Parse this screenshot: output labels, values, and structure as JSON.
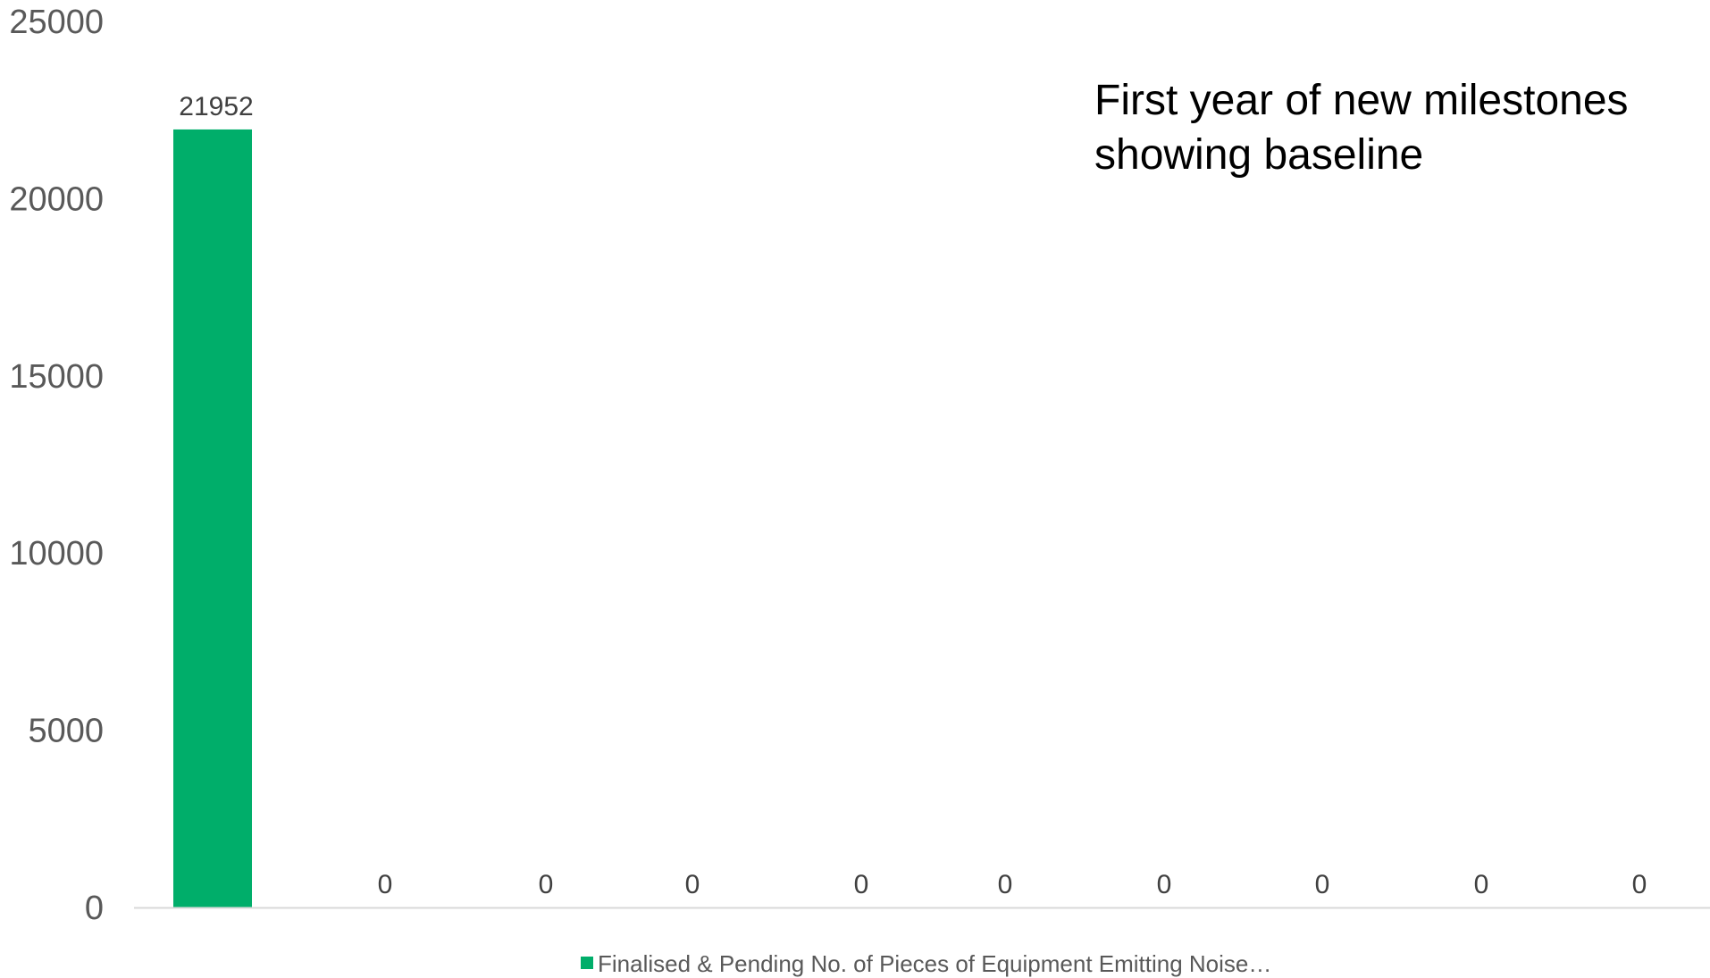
{
  "chart_data": {
    "type": "bar",
    "categories": [
      "",
      "",
      "",
      "",
      "",
      "",
      "",
      "",
      "",
      ""
    ],
    "series": [
      {
        "name": "Finalised & Pending No. of Pieces of Equipment Emitting Noise…",
        "values": [
          21952,
          0,
          0,
          0,
          0,
          0,
          0,
          0,
          0,
          0
        ],
        "color": "#00AE6A"
      }
    ],
    "data_labels": [
      "21952",
      "0",
      "0",
      "0",
      "0",
      "0",
      "0",
      "0",
      "0",
      "0"
    ],
    "ylim": [
      0,
      25000
    ],
    "yticks": [
      0,
      5000,
      10000,
      15000,
      20000,
      25000
    ],
    "grid": false,
    "legend_position": "bottom",
    "annotation": {
      "line1": "First year of new milestones",
      "line2": "showing baseline"
    },
    "axis_color": "#D9D9D9"
  }
}
